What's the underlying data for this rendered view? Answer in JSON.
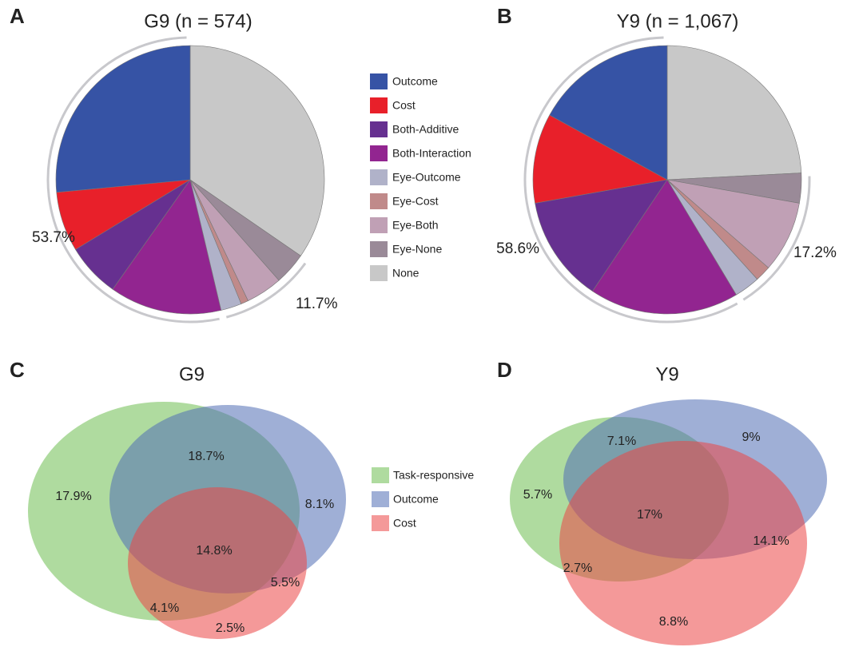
{
  "chart_data": [
    {
      "type": "pie",
      "panel": "A",
      "title": "G9 (n = 574)",
      "categories": [
        "Outcome",
        "Cost",
        "Both-Additive",
        "Both-Interaction",
        "Eye-Outcome",
        "Eye-Cost",
        "Eye-Both",
        "Eye-None",
        "None"
      ],
      "values": [
        26.5,
        7.2,
        6.5,
        13.5,
        2.5,
        0.9,
        4.4,
        3.9,
        34.6
      ],
      "colors": [
        "#3653a5",
        "#e8202a",
        "#663090",
        "#922590",
        "#b0b2c9",
        "#c08a8a",
        "#c0a0b5",
        "#9a8a98",
        "#c8c8c8"
      ],
      "groups": [
        {
          "value": 53.7,
          "label": "53.7%"
        },
        {
          "value": 11.7,
          "label": "11.7%"
        }
      ]
    },
    {
      "type": "pie",
      "panel": "B",
      "title": "Y9 (n = 1,067)",
      "values": [
        17.0,
        10.8,
        12.8,
        18.0,
        3.1,
        1.9,
        8.6,
        3.6,
        24.2
      ],
      "colors": [
        "#3653a5",
        "#e8202a",
        "#663090",
        "#922590",
        "#b0b2c9",
        "#c08a8a",
        "#c0a0b5",
        "#9a8a98",
        "#c8c8c8"
      ],
      "groups": [
        {
          "value": 58.6,
          "label": "58.6%"
        },
        {
          "value": 17.2,
          "label": "17.2%"
        }
      ]
    },
    {
      "type": "venn",
      "panel": "C",
      "title": "G9",
      "series": [
        {
          "name": "Task-responsive",
          "color": "#6ebe50"
        },
        {
          "name": "Outcome",
          "color": "#506eb4"
        },
        {
          "name": "Cost",
          "color": "#eb4646"
        }
      ],
      "values": [
        17.9,
        18.7,
        8.1,
        14.8,
        5.5,
        4.1,
        2.5
      ],
      "value_labels": [
        "17.9%",
        "18.7%",
        "8.1%",
        "14.8%",
        "5.5%",
        "4.1%",
        "2.5%"
      ]
    },
    {
      "type": "venn",
      "panel": "D",
      "title": "Y9",
      "colors": [
        "#6ebe50",
        "#506eb4",
        "#eb4646"
      ],
      "values": [
        7.1,
        9,
        5.7,
        17,
        14.1,
        2.7,
        8.8
      ],
      "value_labels": [
        "7.1%",
        "9%",
        "5.7%",
        "17%",
        "14.1%",
        "2.7%",
        "8.8%"
      ]
    }
  ]
}
